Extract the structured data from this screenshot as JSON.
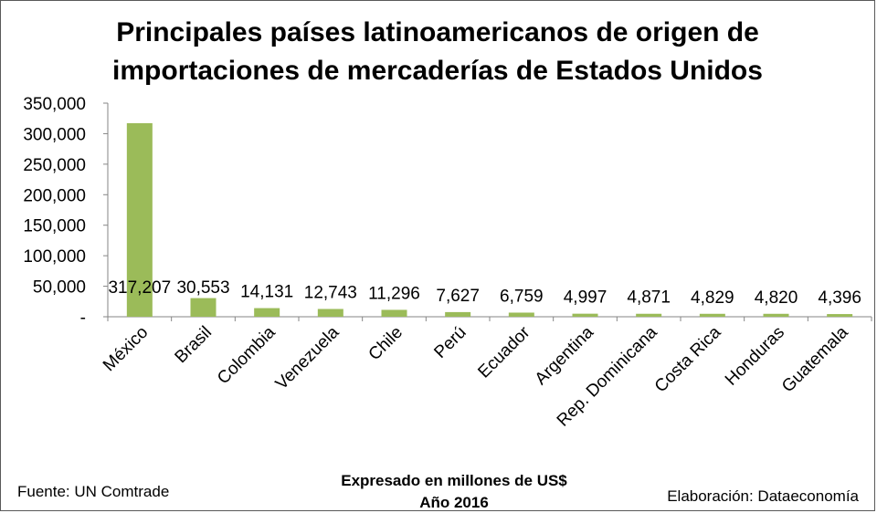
{
  "chart_data": {
    "type": "bar",
    "title_lines": [
      "Principales países latinoamericanos de origen de",
      "importaciones de mercaderías de Estados Unidos"
    ],
    "categories": [
      "México",
      "Brasil",
      "Colombia",
      "Venezuela",
      "Chile",
      "Perú",
      "Ecuador",
      "Argentina",
      "Rep. Dominicana",
      "Costa Rica",
      "Honduras",
      "Guatemala"
    ],
    "values": [
      317207,
      30553,
      14131,
      12743,
      11296,
      7627,
      6759,
      4997,
      4871,
      4829,
      4820,
      4396
    ],
    "data_labels": [
      "317,207",
      "30,553",
      "14,131",
      "12,743",
      "11,296",
      "7,627",
      "6,759",
      "4,997",
      "4,871",
      "4,829",
      "4,820",
      "4,396"
    ],
    "y_ticks": [
      0,
      50000,
      100000,
      150000,
      200000,
      250000,
      300000,
      350000
    ],
    "y_tick_labels": [
      "-",
      "50,000",
      "100,000",
      "150,000",
      "200,000",
      "250,000",
      "300,000",
      "350,000"
    ],
    "ylim": [
      0,
      350000
    ],
    "grid": false,
    "legend": "none",
    "bar_color": "#9bbb59",
    "axis_color": "#868686",
    "xlabel_lines": [
      "Expresado en millones de US$",
      "Año 2016"
    ],
    "source": "Fuente: UN Comtrade",
    "credit": "Elaboración: Dataeconomía"
  }
}
